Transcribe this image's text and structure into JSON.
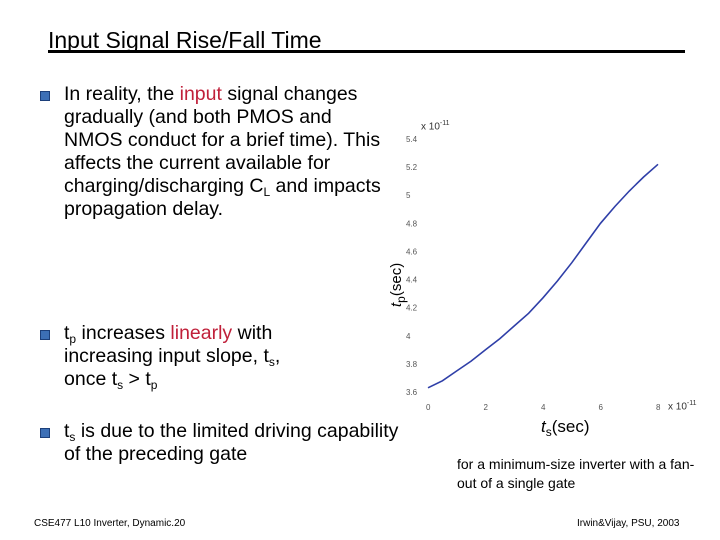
{
  "title": "Input Signal Rise/Fall Time",
  "bullets": {
    "b1": {
      "pre": "In reality, the ",
      "highlight": "input",
      "post": " signal changes gradually (and both PMOS and NMOS conduct for a brief time).  This affects  the current available for charging/discharging C",
      "sub": "L",
      "end": " and impacts propagation delay."
    },
    "b2": {
      "t": "t",
      "sub1": "p",
      "pre": " increases ",
      "highlight": "linearly",
      "mid": " with increasing input slope, t",
      "sub2": "s",
      "mid2": ",",
      "line3_pre": "once  t",
      "sub3": "s",
      "line3_mid": " > t",
      "sub4": "p"
    },
    "b3": {
      "t": "t",
      "sub": "s",
      "rest": " is due to the limited driving capability of the preceding gate"
    }
  },
  "chart_data": {
    "type": "line",
    "ylabel_main": "t",
    "ylabel_sub": "p",
    "ylabel_unit": "(sec)",
    "y_multiplier": "x 10",
    "y_exp": "-11",
    "xlabel_main": "t",
    "xlabel_sub": "s",
    "xlabel_unit": "(sec)",
    "x_multiplier": "x 10",
    "x_exp": "-11",
    "xlim": [
      0,
      8
    ],
    "ylim": [
      3.6,
      5.4
    ],
    "x_ticks": [
      "0",
      "2",
      "4",
      "6",
      "8"
    ],
    "y_ticks": [
      "3.6",
      "3.8",
      "4",
      "4.2",
      "4.4",
      "4.6",
      "4.8",
      "5",
      "5.2",
      "5.4"
    ],
    "line_color": "#2f3fa8",
    "series": [
      {
        "x": [
          0,
          0.5,
          1,
          1.5,
          2,
          2.5,
          3,
          3.5,
          4,
          4.5,
          5,
          5.5,
          6,
          6.5,
          7,
          7.5,
          8
        ],
        "y": [
          3.63,
          3.68,
          3.75,
          3.82,
          3.9,
          3.98,
          4.07,
          4.16,
          4.27,
          4.39,
          4.52,
          4.66,
          4.8,
          4.92,
          5.03,
          5.13,
          5.22
        ]
      }
    ]
  },
  "caption": "for a minimum-size inverter with a fan-out of a single gate",
  "footer_left": "CSE477  L10 Inverter, Dynamic.20",
  "footer_right": "Irwin&Vijay, PSU, 2003"
}
